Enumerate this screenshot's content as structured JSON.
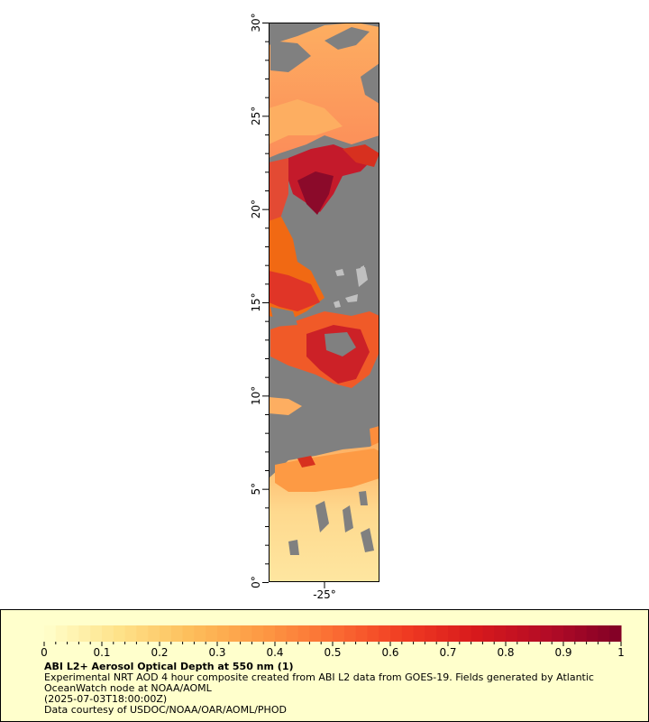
{
  "map": {
    "lat_range": [
      0,
      30
    ],
    "lon_label": "-25°",
    "lat_ticks": [
      "0°",
      "5°",
      "10°",
      "15°",
      "20°",
      "25°",
      "30°"
    ],
    "land_no_data_color": "#808080"
  },
  "legend": {
    "title": "ABI L2+ Aerosol Optical Depth at 550 nm (1)",
    "description": "Experimental NRT AOD 4 hour composite created from ABI L2 data from GOES-19. Fields generated by Atlantic OceanWatch node at NOAA/AOML",
    "date": "(2025-07-03T18:00:00Z)",
    "credit": "Data courtesy of USDOC/NOAA/OAR/AOML/PHOD",
    "scale_min": 0,
    "scale_max": 1,
    "tick_labels": [
      "0",
      "0.1",
      "0.2",
      "0.3",
      "0.4",
      "0.5",
      "0.6",
      "0.7",
      "0.8",
      "0.9",
      "1"
    ],
    "colors": [
      "#ffffcc",
      "#fee38b",
      "#fdbf5c",
      "#fd9a44",
      "#fb6d33",
      "#f03b22",
      "#d7191c",
      "#b30b26",
      "#800026"
    ]
  }
}
